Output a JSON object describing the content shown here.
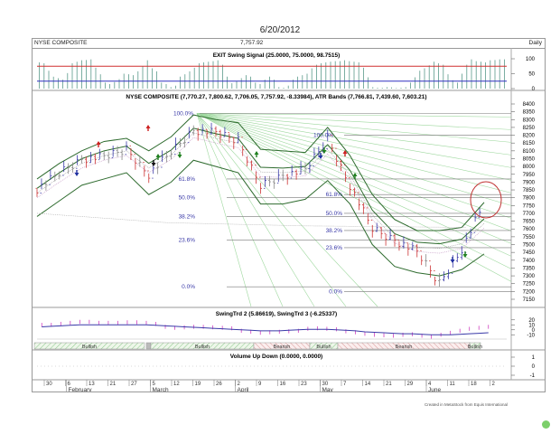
{
  "title": "6/20/2012",
  "header": {
    "symbol": "NYSE COMPOSITE",
    "last_price": "7,757.92",
    "period": "Daily"
  },
  "panels": {
    "exit_swing": {
      "label": "EXIT Swing Signal (25.0000, 75.0000, 98.7515)",
      "y_ticks": [
        "100",
        "50",
        "0"
      ]
    },
    "price": {
      "label": "NYSE COMPOSITE (7,770.27, 7,800.62, 7,706.05, 7,757.92, -8.33984), ATR Bands (7,766.81, 7,439.60, 7,603.21)",
      "y_ticks": [
        "8400",
        "8350",
        "8300",
        "8250",
        "8200",
        "8150",
        "8100",
        "8050",
        "8000",
        "7950",
        "7900",
        "7850",
        "7800",
        "7750",
        "7700",
        "7650",
        "7600",
        "7550",
        "7500",
        "7450",
        "7400",
        "7350",
        "7300",
        "7250",
        "7200",
        "7150"
      ],
      "fib_left": [
        "100.0%",
        "61.8%",
        "50.0%",
        "38.2%",
        "23.6%",
        "0.0%"
      ],
      "fib_right": [
        "100.0%",
        "61.8%",
        "50.0%",
        "38.2%",
        "23.6%",
        "0.0%"
      ]
    },
    "swingtrd": {
      "label": "SwingTrd 2 (5.86619), SwingTrd 3 (-6.25337)",
      "y_ticks": [
        "20",
        "10",
        "0",
        "-10"
      ],
      "bands": [
        {
          "label": "Bullish",
          "type": "bull"
        },
        {
          "label": "",
          "type": "neutral"
        },
        {
          "label": "Bullish",
          "type": "bull"
        },
        {
          "label": "Bearish",
          "type": "bear"
        },
        {
          "label": "Bullish",
          "type": "bull"
        },
        {
          "label": "Bearish",
          "type": "bear"
        },
        {
          "label": "Bullish",
          "type": "bull"
        }
      ]
    },
    "volume": {
      "label": "Volume Up Down (0.0000, 0.0000)",
      "y_ticks": [
        "1",
        "0",
        "-1"
      ]
    }
  },
  "x_axis": {
    "days": [
      "30",
      "6",
      "13",
      "21",
      "27",
      "5",
      "12",
      "19",
      "26",
      "2",
      "9",
      "16",
      "23",
      "30",
      "7",
      "14",
      "21",
      "29",
      "4",
      "11",
      "18",
      "2"
    ],
    "months": [
      "February",
      "March",
      "April",
      "May",
      "June"
    ]
  },
  "credit": "Created in MetaStock from Equis International",
  "colors": {
    "up_bar": "#3a3aa8",
    "down_bar": "#cc3333",
    "neutral_bar": "#888888",
    "band": "#2e6b2e",
    "fan": "#9ed89e",
    "exit_upper": "#d03030",
    "exit_lower": "#3030c0",
    "exit_bar": "#5a9a8a",
    "circle": "#c03030"
  },
  "chart_data": [
    {
      "type": "bar",
      "title": "EXIT Swing Signal (25.0000, 75.0000, 98.7515)",
      "ylim": [
        0,
        100
      ],
      "thresholds": [
        25,
        75
      ],
      "values": [
        88,
        85,
        60,
        40,
        35,
        30,
        52,
        85,
        90,
        95,
        96,
        98,
        70,
        48,
        20,
        15,
        22,
        32,
        50,
        48,
        45,
        58,
        75,
        95,
        68,
        58,
        20,
        15,
        5,
        10,
        40,
        48,
        58,
        70,
        85,
        88,
        90,
        92,
        95,
        80,
        40,
        18,
        25,
        35,
        45,
        40,
        20,
        15,
        30,
        40,
        30,
        5,
        3,
        10,
        30,
        40,
        45,
        50,
        68,
        80,
        85,
        88,
        90,
        92,
        92,
        95,
        92,
        90,
        88,
        70,
        38,
        5,
        3,
        3,
        5,
        4,
        2,
        3,
        5,
        20,
        38,
        60,
        68,
        78,
        90,
        85,
        80,
        48,
        28,
        20,
        50,
        80,
        98,
        92,
        90,
        88,
        95,
        96,
        98,
        98
      ]
    },
    {
      "type": "line",
      "title": "NYSE COMPOSITE Daily OHLC with ATR Bands",
      "last": {
        "open": 7770.27,
        "high": 7800.62,
        "low": 7706.05,
        "close": 7757.92,
        "change": -8.33984
      },
      "atr_bands": {
        "upper": 7766.81,
        "lower": 7439.6,
        "mid": 7603.21
      },
      "ylim": [
        7150,
        8400
      ],
      "x": [
        "Jan 30",
        "Feb 6",
        "Feb 13",
        "Feb 21",
        "Feb 27",
        "Mar 5",
        "Mar 12",
        "Mar 19",
        "Mar 26",
        "Apr 2",
        "Apr 9",
        "Apr 16",
        "Apr 23",
        "Apr 30",
        "May 7",
        "May 14",
        "May 21",
        "May 29",
        "Jun 4",
        "Jun 11",
        "Jun 18"
      ],
      "series": [
        {
          "name": "Close (approx.)",
          "values": [
            7860,
            7960,
            8050,
            8060,
            8110,
            7950,
            8090,
            8230,
            8210,
            8160,
            7880,
            7950,
            7980,
            8180,
            7880,
            7600,
            7530,
            7450,
            7250,
            7470,
            7760
          ]
        },
        {
          "name": "ATR Upper (approx.)",
          "values": [
            7920,
            8020,
            8100,
            8160,
            8180,
            8100,
            8190,
            8330,
            8300,
            8280,
            8110,
            8100,
            8090,
            8250,
            8070,
            7820,
            7660,
            7590,
            7590,
            7610,
            7770
          ]
        },
        {
          "name": "ATR Lower (approx.)",
          "values": [
            7680,
            7780,
            7880,
            7920,
            7960,
            7820,
            7900,
            8040,
            8000,
            7960,
            7760,
            7760,
            7790,
            7910,
            7760,
            7500,
            7360,
            7320,
            7300,
            7340,
            7440
          ]
        }
      ],
      "fibonacci_left": {
        "100.0%": 8340,
        "61.8%": 7920,
        "50.0%": 7800,
        "38.2%": 7680,
        "23.6%": 7530,
        "0.0%": 7230
      },
      "fibonacci_right": {
        "100.0%": 8200,
        "61.8%": 7820,
        "50.0%": 7700,
        "38.2%": 7590,
        "23.6%": 7480,
        "0.0%": 7200
      }
    },
    {
      "type": "bar",
      "title": "SwingTrd 2 (5.86619), SwingTrd 3 (-6.25337)",
      "ylim": [
        -15,
        25
      ],
      "series": [
        {
          "name": "SwingTrd 2",
          "values": [
            10,
            10,
            12,
            14,
            16,
            16,
            14,
            14,
            14,
            15,
            15,
            14,
            12,
            6,
            4,
            5,
            6,
            6,
            5,
            4,
            3,
            -2,
            -4,
            -6,
            -5,
            -4,
            -3,
            -2,
            2,
            3,
            2,
            1,
            -3,
            -5,
            -8,
            -10,
            -11,
            -12,
            -10,
            -9,
            -12,
            -14,
            -10,
            -6,
            -2,
            2,
            4,
            6
          ]
        },
        {
          "name": "SwingTrd 3",
          "values": [
            6,
            7,
            8,
            9,
            10,
            10,
            10,
            10,
            10,
            10,
            10,
            10,
            9,
            8,
            7,
            6,
            5,
            4,
            3,
            2,
            1,
            0,
            -1,
            -2,
            -2,
            -2,
            -1,
            0,
            1,
            1,
            1,
            0,
            -1,
            -2,
            -4,
            -5,
            -6,
            -7,
            -8,
            -8,
            -9,
            -10,
            -10,
            -10,
            -9,
            -8,
            -7,
            -6
          ]
        }
      ]
    },
    {
      "type": "line",
      "title": "Volume Up Down (0.0000, 0.0000)",
      "ylim": [
        -1,
        1
      ],
      "values": [
        0
      ]
    }
  ]
}
